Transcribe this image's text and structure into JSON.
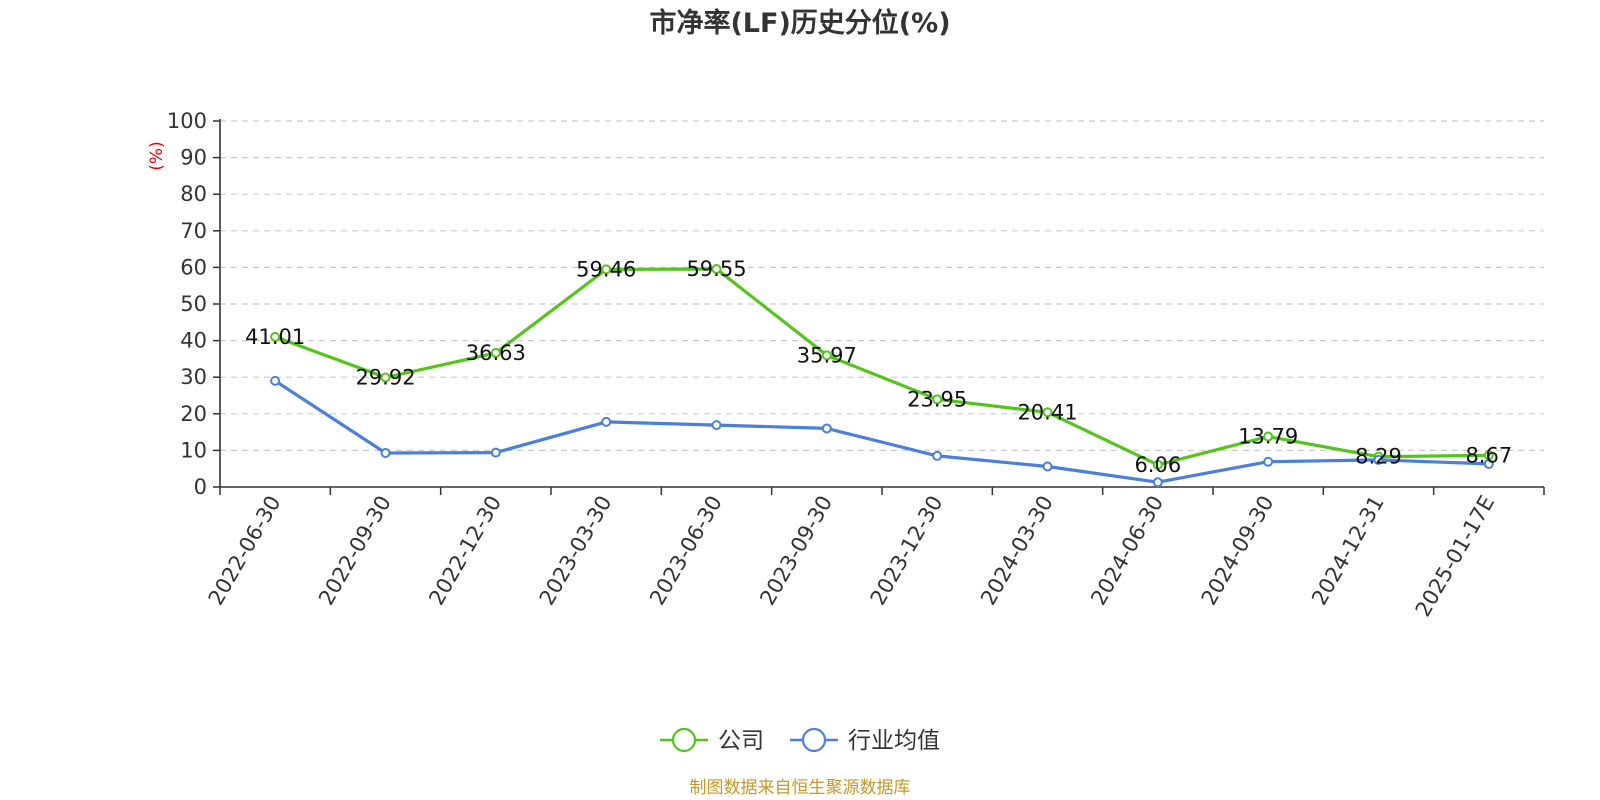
{
  "chart_data": {
    "type": "line",
    "title": "市净率(LF)历史分位(%)",
    "ylabel": "(%)",
    "ylim": [
      0,
      100
    ],
    "yticks": [
      0,
      10,
      20,
      30,
      40,
      50,
      60,
      70,
      80,
      90,
      100
    ],
    "categories": [
      "2022-06-30",
      "2022-09-30",
      "2022-12-30",
      "2023-03-30",
      "2023-06-30",
      "2023-09-30",
      "2023-12-30",
      "2024-03-30",
      "2024-06-30",
      "2024-09-30",
      "2024-12-31",
      "2025-01-17E"
    ],
    "series": [
      {
        "name": "公司",
        "color": "#52c41a",
        "show_labels": true,
        "values": [
          41.01,
          29.92,
          36.63,
          59.46,
          59.55,
          35.97,
          23.95,
          20.41,
          6.06,
          13.79,
          8.29,
          8.67
        ]
      },
      {
        "name": "行业均值",
        "color": "#4a7fdc",
        "show_labels": false,
        "values": [
          29.0,
          9.3,
          9.4,
          17.8,
          16.9,
          16.0,
          8.5,
          5.6,
          1.3,
          6.9,
          7.4,
          6.3
        ]
      }
    ],
    "grid": true,
    "legend_position": "bottom-center"
  },
  "footer": {
    "source": "制图数据来自恒生聚源数据库"
  }
}
